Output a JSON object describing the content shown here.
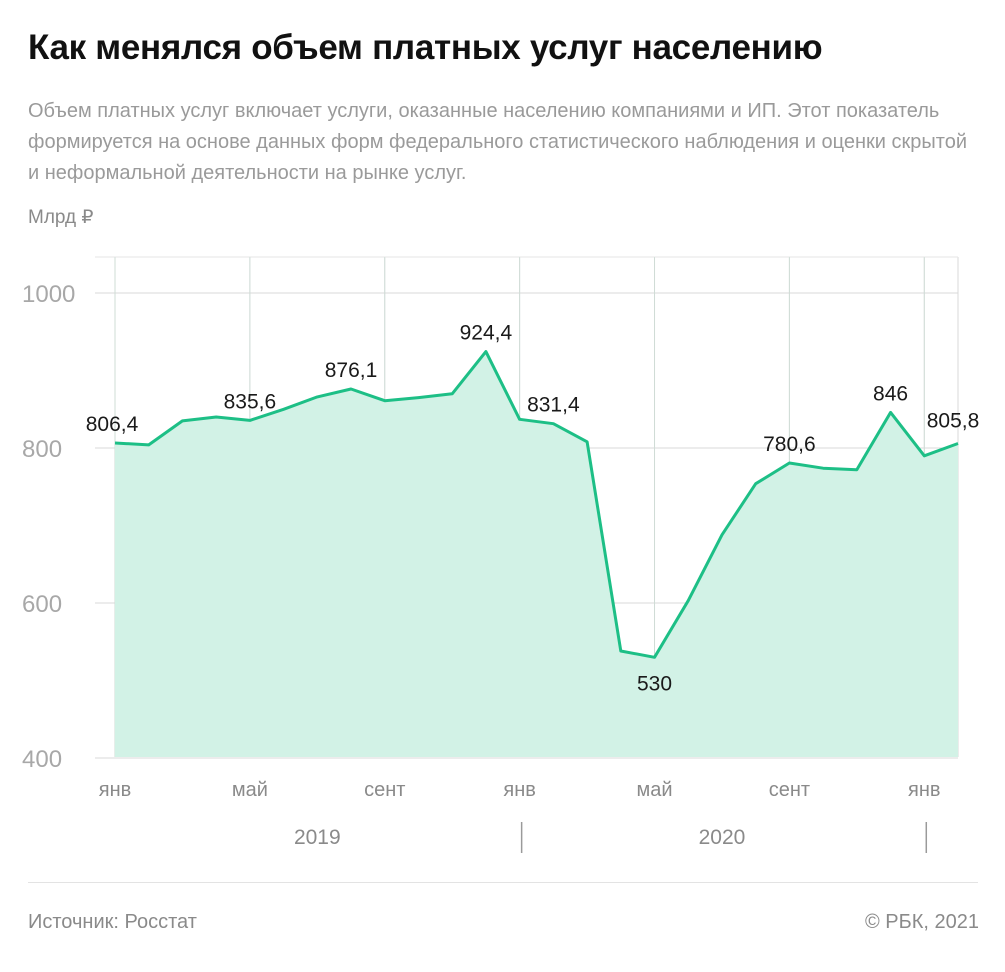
{
  "header": {
    "title": "Как менялся объем платных услуг населению",
    "subtitle": "Объем платных услуг включает услуги, оказанные населению компаниями и ИП. Этот показатель формируется на основе данных форм федерального статистического наблюдения и оценки скрытой и неформальной деятельности на рынке услуг.",
    "unit": "Млрд ₽"
  },
  "footer": {
    "source": "Источник:  Росстат",
    "copyright": "©  РБК, 2021"
  },
  "colors": {
    "line": "#1dbf86",
    "fill": "#d2f2e6",
    "grid": "#d9d9d9"
  },
  "chart_data": {
    "type": "area",
    "title": "Как менялся объем платных услуг населению",
    "ylabel": "Млрд ₽",
    "ylim": [
      400,
      1030
    ],
    "yticks": [
      400,
      600,
      800,
      1000
    ],
    "grid": true,
    "x": [
      "2019-01",
      "2019-02",
      "2019-03",
      "2019-04",
      "2019-05",
      "2019-06",
      "2019-07",
      "2019-08",
      "2019-09",
      "2019-10",
      "2019-11",
      "2019-12",
      "2020-01",
      "2020-02",
      "2020-03",
      "2020-04",
      "2020-05",
      "2020-06",
      "2020-07",
      "2020-08",
      "2020-09",
      "2020-10",
      "2020-11",
      "2020-12",
      "2021-01",
      "2021-02"
    ],
    "values": [
      806.4,
      804,
      835,
      840,
      835.6,
      850,
      866,
      876.1,
      861,
      865,
      870,
      924.4,
      837,
      831.4,
      808,
      538,
      530,
      603,
      688,
      754,
      780.6,
      774,
      772,
      846,
      790,
      805.8
    ],
    "x_tick_labels": [
      {
        "x": "2019-01",
        "label": "янв"
      },
      {
        "x": "2019-05",
        "label": "май"
      },
      {
        "x": "2019-09",
        "label": "сент"
      },
      {
        "x": "2020-01",
        "label": "янв"
      },
      {
        "x": "2020-05",
        "label": "май"
      },
      {
        "x": "2020-09",
        "label": "сент"
      },
      {
        "x": "2021-01",
        "label": "янв"
      }
    ],
    "year_labels": [
      {
        "label": "2019",
        "from": "2019-01",
        "to": "2020-01"
      },
      {
        "label": "2020",
        "from": "2020-01",
        "to": "2021-01"
      }
    ],
    "annotations": [
      {
        "x": "2019-01",
        "value": 806.4,
        "label": "806,4"
      },
      {
        "x": "2019-05",
        "value": 835.6,
        "label": "835,6"
      },
      {
        "x": "2019-08",
        "value": 876.1,
        "label": "876,1"
      },
      {
        "x": "2019-12",
        "value": 924.4,
        "label": "924,4"
      },
      {
        "x": "2020-02",
        "value": 831.4,
        "label": "831,4"
      },
      {
        "x": "2020-05",
        "value": 530,
        "label": "530"
      },
      {
        "x": "2020-09",
        "value": 780.6,
        "label": "780,6"
      },
      {
        "x": "2020-12",
        "value": 846,
        "label": "846"
      },
      {
        "x": "2021-02",
        "value": 805.8,
        "label": "805,8"
      }
    ]
  }
}
